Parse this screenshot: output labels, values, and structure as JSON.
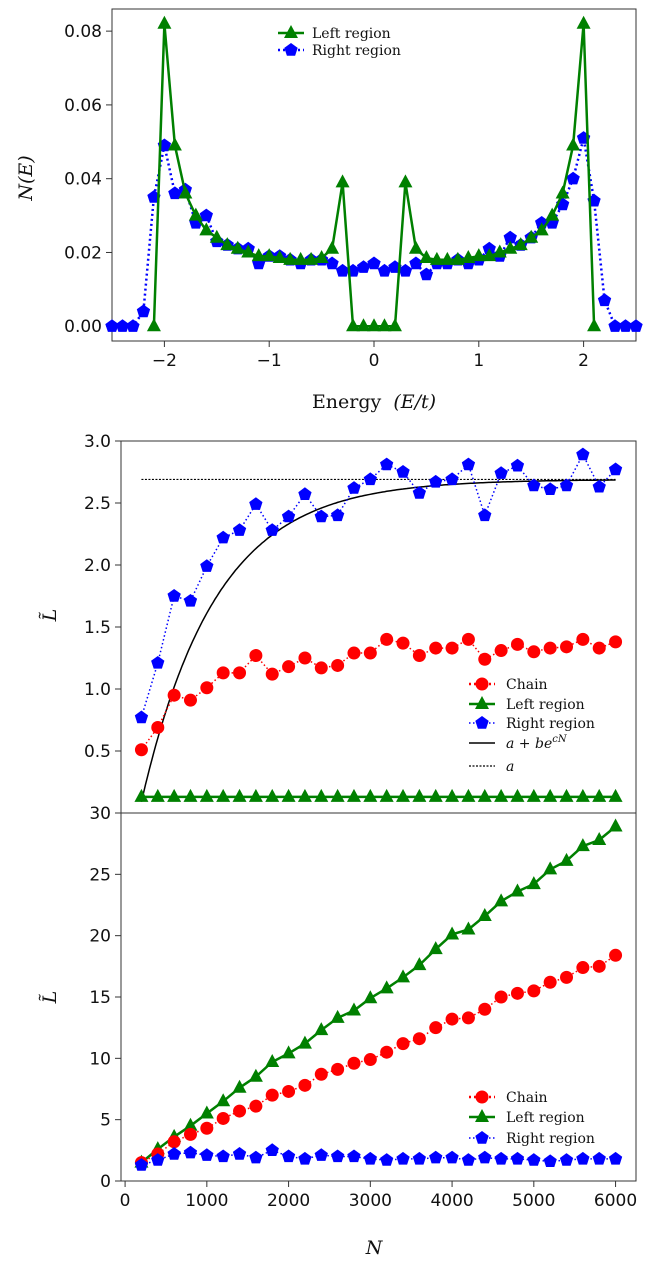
{
  "chart_data": [
    {
      "type": "line",
      "title": "",
      "xlabel": "Energy (E/t)",
      "xlabel_text": "Energy",
      "xlabel_var": "(E/t)",
      "ylabel": "N(E)",
      "xlim": [
        -2.5,
        2.5
      ],
      "ylim": [
        -0.004,
        0.086
      ],
      "xticks": [
        -2,
        -1,
        0,
        1,
        2
      ],
      "xtick_labels": [
        "−2",
        "−1",
        "0",
        "1",
        "2"
      ],
      "yticks": [
        0.0,
        0.02,
        0.04,
        0.06,
        0.08
      ],
      "ytick_labels": [
        "0.00",
        "0.02",
        "0.04",
        "0.06",
        "0.08"
      ],
      "legend": {
        "position": "top-center",
        "entries": [
          "Left region",
          "Right region"
        ]
      },
      "series": [
        {
          "name": "Left region",
          "color": "#008000",
          "marker": "triangle",
          "linestyle": "solid",
          "x": [
            -2.1,
            -2.0,
            -1.9,
            -1.8,
            -1.7,
            -1.6,
            -1.5,
            -1.4,
            -1.3,
            -1.2,
            -1.1,
            -1.0,
            -0.9,
            -0.8,
            -0.7,
            -0.6,
            -0.5,
            -0.4,
            -0.3,
            -0.2,
            -0.1,
            0.0,
            0.1,
            0.2,
            0.3,
            0.4,
            0.5,
            0.6,
            0.7,
            0.8,
            0.9,
            1.0,
            1.1,
            1.2,
            1.3,
            1.4,
            1.5,
            1.6,
            1.7,
            1.8,
            1.9,
            2.0,
            2.1
          ],
          "y": [
            0.0,
            0.082,
            0.049,
            0.036,
            0.03,
            0.026,
            0.024,
            0.022,
            0.021,
            0.02,
            0.019,
            0.019,
            0.0185,
            0.018,
            0.018,
            0.018,
            0.0185,
            0.021,
            0.039,
            0.0,
            0.0,
            0.0,
            0.0,
            0.0,
            0.039,
            0.021,
            0.0185,
            0.018,
            0.018,
            0.018,
            0.0185,
            0.019,
            0.019,
            0.02,
            0.021,
            0.022,
            0.024,
            0.026,
            0.03,
            0.036,
            0.049,
            0.082,
            0.0
          ]
        },
        {
          "name": "Right region",
          "color": "#0000ff",
          "marker": "pentagon",
          "linestyle": "dotted",
          "x": [
            -2.5,
            -2.4,
            -2.3,
            -2.2,
            -2.1,
            -2.0,
            -1.9,
            -1.8,
            -1.7,
            -1.6,
            -1.5,
            -1.4,
            -1.3,
            -1.2,
            -1.1,
            -1.0,
            -0.9,
            -0.8,
            -0.7,
            -0.6,
            -0.5,
            -0.4,
            -0.3,
            -0.2,
            -0.1,
            0.0,
            0.1,
            0.2,
            0.3,
            0.4,
            0.5,
            0.6,
            0.7,
            0.8,
            0.9,
            1.0,
            1.1,
            1.2,
            1.3,
            1.4,
            1.5,
            1.6,
            1.7,
            1.8,
            1.9,
            2.0,
            2.1,
            2.2,
            2.3,
            2.4,
            2.5
          ],
          "y": [
            0.0,
            0.0,
            0.0,
            0.004,
            0.035,
            0.049,
            0.036,
            0.037,
            0.028,
            0.03,
            0.023,
            0.022,
            0.021,
            0.021,
            0.017,
            0.019,
            0.019,
            0.018,
            0.017,
            0.018,
            0.018,
            0.017,
            0.015,
            0.015,
            0.016,
            0.017,
            0.015,
            0.016,
            0.015,
            0.017,
            0.014,
            0.017,
            0.017,
            0.018,
            0.017,
            0.018,
            0.021,
            0.019,
            0.024,
            0.022,
            0.024,
            0.028,
            0.028,
            0.033,
            0.04,
            0.051,
            0.034,
            0.007,
            0.0,
            0.0,
            0.0
          ]
        }
      ]
    },
    {
      "type": "line",
      "title": "",
      "xlabel": "",
      "ylabel": "L̃",
      "xlim": [
        -50,
        6250
      ],
      "ylim": [
        0.0,
        3.0
      ],
      "yticks": [
        0.5,
        1.0,
        1.5,
        2.0,
        2.5,
        3.0
      ],
      "ytick_labels": [
        "0.5",
        "1.0",
        "1.5",
        "2.0",
        "2.5",
        "3.0"
      ],
      "legend": {
        "position": "bottom-right",
        "entries": [
          "Chain",
          "Left region",
          "Right region",
          "a + be^{cN}",
          "a"
        ]
      },
      "legend_labels": {
        "fit_a": "a + be",
        "fit_exp": "cN",
        "const": "a"
      },
      "fit": {
        "a": 2.69,
        "b": -2.6,
        "c": -0.0011,
        "x_range": [
          200,
          6000
        ]
      },
      "asymptote": {
        "y": 2.69,
        "x_range": [
          200,
          6000
        ]
      },
      "series": [
        {
          "name": "Chain",
          "color": "#ff0000",
          "marker": "circle",
          "linestyle": "dotted",
          "x": [
            200,
            400,
            600,
            800,
            1000,
            1200,
            1400,
            1600,
            1800,
            2000,
            2200,
            2400,
            2600,
            2800,
            3000,
            3200,
            3400,
            3600,
            3800,
            4000,
            4200,
            4400,
            4600,
            4800,
            5000,
            5200,
            5400,
            5600,
            5800,
            6000
          ],
          "y": [
            0.51,
            0.69,
            0.95,
            0.91,
            1.01,
            1.13,
            1.13,
            1.27,
            1.12,
            1.18,
            1.25,
            1.17,
            1.19,
            1.29,
            1.29,
            1.4,
            1.37,
            1.27,
            1.33,
            1.33,
            1.4,
            1.24,
            1.31,
            1.36,
            1.3,
            1.33,
            1.34,
            1.4,
            1.33,
            1.38
          ]
        },
        {
          "name": "Left region",
          "color": "#008000",
          "marker": "triangle",
          "linestyle": "solid",
          "x": [
            200,
            400,
            600,
            800,
            1000,
            1200,
            1400,
            1600,
            1800,
            2000,
            2200,
            2400,
            2600,
            2800,
            3000,
            3200,
            3400,
            3600,
            3800,
            4000,
            4200,
            4400,
            4600,
            4800,
            5000,
            5200,
            5400,
            5600,
            5800,
            6000
          ],
          "y": [
            0.13,
            0.13,
            0.13,
            0.13,
            0.13,
            0.13,
            0.13,
            0.13,
            0.13,
            0.13,
            0.13,
            0.13,
            0.13,
            0.13,
            0.13,
            0.13,
            0.13,
            0.13,
            0.13,
            0.13,
            0.13,
            0.13,
            0.13,
            0.13,
            0.13,
            0.13,
            0.13,
            0.13,
            0.13,
            0.13
          ]
        },
        {
          "name": "Right region",
          "color": "#0000ff",
          "marker": "pentagon",
          "linestyle": "dotted",
          "x": [
            200,
            400,
            600,
            800,
            1000,
            1200,
            1400,
            1600,
            1800,
            2000,
            2200,
            2400,
            2600,
            2800,
            3000,
            3200,
            3400,
            3600,
            3800,
            4000,
            4200,
            4400,
            4600,
            4800,
            5000,
            5200,
            5400,
            5600,
            5800,
            6000
          ],
          "y": [
            0.77,
            1.21,
            1.75,
            1.71,
            1.99,
            2.22,
            2.28,
            2.49,
            2.28,
            2.39,
            2.57,
            2.39,
            2.4,
            2.62,
            2.69,
            2.81,
            2.75,
            2.58,
            2.67,
            2.69,
            2.81,
            2.4,
            2.74,
            2.8,
            2.64,
            2.61,
            2.64,
            2.89,
            2.63,
            2.77
          ]
        }
      ]
    },
    {
      "type": "line",
      "title": "",
      "xlabel": "N",
      "ylabel": "L̃",
      "xlim": [
        -50,
        6250
      ],
      "ylim": [
        0,
        30
      ],
      "xticks": [
        0,
        1000,
        2000,
        3000,
        4000,
        5000,
        6000
      ],
      "xtick_labels": [
        "0",
        "1000",
        "2000",
        "3000",
        "4000",
        "5000",
        "6000"
      ],
      "yticks": [
        0,
        5,
        10,
        15,
        20,
        25,
        30
      ],
      "ytick_labels": [
        "0",
        "5",
        "10",
        "15",
        "20",
        "25",
        "30"
      ],
      "legend": {
        "position": "bottom-right",
        "entries": [
          "Chain",
          "Left region",
          "Right region"
        ]
      },
      "series": [
        {
          "name": "Chain",
          "color": "#ff0000",
          "marker": "circle",
          "linestyle": "dotted",
          "x": [
            200,
            400,
            600,
            800,
            1000,
            1200,
            1400,
            1600,
            1800,
            2000,
            2200,
            2400,
            2600,
            2800,
            3000,
            3200,
            3400,
            3600,
            3800,
            4000,
            4200,
            4400,
            4600,
            4800,
            5000,
            5200,
            5400,
            5600,
            5800,
            6000
          ],
          "y": [
            1.5,
            2.2,
            3.2,
            3.8,
            4.3,
            5.1,
            5.7,
            6.1,
            7.0,
            7.3,
            7.8,
            8.7,
            9.1,
            9.6,
            9.9,
            10.5,
            11.2,
            11.6,
            12.5,
            13.2,
            13.3,
            14.0,
            15.0,
            15.3,
            15.5,
            16.2,
            16.6,
            17.4,
            17.5,
            18.4
          ]
        },
        {
          "name": "Left region",
          "color": "#008000",
          "marker": "triangle",
          "linestyle": "solid",
          "x": [
            200,
            400,
            600,
            800,
            1000,
            1200,
            1400,
            1600,
            1800,
            2000,
            2200,
            2400,
            2600,
            2800,
            3000,
            3200,
            3400,
            3600,
            3800,
            4000,
            4200,
            4400,
            4600,
            4800,
            5000,
            5200,
            5400,
            5600,
            5800,
            6000
          ],
          "y": [
            1.5,
            2.6,
            3.6,
            4.5,
            5.5,
            6.5,
            7.6,
            8.5,
            9.7,
            10.4,
            11.2,
            12.3,
            13.3,
            13.9,
            14.9,
            15.7,
            16.6,
            17.6,
            18.9,
            20.1,
            20.5,
            21.6,
            22.8,
            23.6,
            24.2,
            25.4,
            26.1,
            27.3,
            27.8,
            28.9
          ]
        },
        {
          "name": "Right region",
          "color": "#0000ff",
          "marker": "pentagon",
          "linestyle": "dotted",
          "x": [
            200,
            400,
            600,
            800,
            1000,
            1200,
            1400,
            1600,
            1800,
            2000,
            2200,
            2400,
            2600,
            2800,
            3000,
            3200,
            3400,
            3600,
            3800,
            4000,
            4200,
            4400,
            4600,
            4800,
            5000,
            5200,
            5400,
            5600,
            5800,
            6000
          ],
          "y": [
            1.3,
            1.7,
            2.2,
            2.3,
            2.1,
            2.0,
            2.2,
            1.9,
            2.5,
            2.0,
            1.8,
            2.1,
            2.0,
            2.0,
            1.8,
            1.7,
            1.8,
            1.8,
            1.9,
            1.9,
            1.7,
            1.9,
            1.8,
            1.8,
            1.7,
            1.6,
            1.7,
            1.8,
            1.8,
            1.8
          ]
        }
      ]
    }
  ]
}
